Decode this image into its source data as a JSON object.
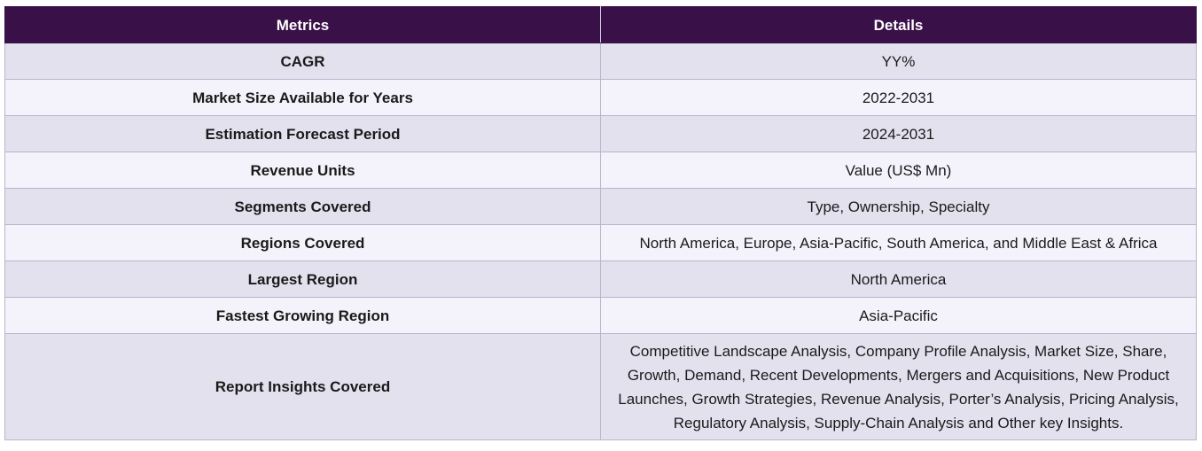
{
  "table": {
    "headers": {
      "metrics": "Metrics",
      "details": "Details"
    },
    "rows": [
      {
        "metric": "CAGR",
        "detail": "YY%"
      },
      {
        "metric": "Market Size Available for Years",
        "detail": "2022-2031"
      },
      {
        "metric": "Estimation Forecast Period",
        "detail": "2024-2031"
      },
      {
        "metric": "Revenue Units",
        "detail": "Value (US$ Mn)"
      },
      {
        "metric": "Segments Covered",
        "detail": "Type, Ownership, Specialty"
      },
      {
        "metric": "Regions Covered",
        "detail": "North America, Europe, Asia-Pacific, South America, and Middle East & Africa"
      },
      {
        "metric": "Largest Region",
        "detail": "North America"
      },
      {
        "metric": "Fastest Growing Region",
        "detail": "Asia-Pacific"
      },
      {
        "metric": "Report Insights Covered",
        "detail": "Competitive Landscape Analysis, Company Profile Analysis, Market Size, Share, Growth, Demand, Recent Developments, Mergers and Acquisitions, New Product Launches, Growth Strategies, Revenue Analysis, Porter’s Analysis, Pricing Analysis, Regulatory Analysis, Supply-Chain Analysis and Other key Insights."
      }
    ]
  },
  "colors": {
    "header_bg": "#3a1048",
    "row_odd_bg": "#e4e1ef",
    "row_even_bg": "#f4f3fb",
    "border": "#b9b4cc"
  }
}
